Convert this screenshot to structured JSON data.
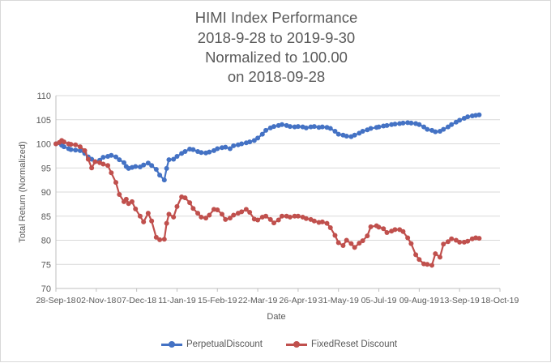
{
  "chart_data": {
    "type": "line",
    "title_lines": [
      "HIMI Index Performance",
      "2018-9-28 to 2019-9-30",
      "Normalized to 100.00",
      "on 2018-09-28"
    ],
    "xlabel": "Date",
    "ylabel": "Total Return (Normalized)",
    "ylim": [
      70,
      110
    ],
    "yticks": [
      70,
      75,
      80,
      85,
      90,
      95,
      100,
      105,
      110
    ],
    "xlim": [
      "2018-09-28",
      "2019-10-18"
    ],
    "xtick_labels": [
      "28-Sep-18",
      "02-Nov-18",
      "07-Dec-18",
      "11-Jan-19",
      "15-Feb-19",
      "22-Mar-19",
      "26-Apr-19",
      "31-May-19",
      "05-Jul-19",
      "09-Aug-19",
      "13-Sep-19",
      "18-Oct-19"
    ],
    "xtick_dates": [
      "2018-09-28",
      "2018-11-02",
      "2018-12-07",
      "2019-01-11",
      "2019-02-15",
      "2019-03-22",
      "2019-04-26",
      "2019-05-31",
      "2019-07-05",
      "2019-08-09",
      "2019-09-13",
      "2019-10-18"
    ],
    "grid": "horizontal",
    "legend_position": "bottom",
    "series": [
      {
        "name": "PerpetualDiscount",
        "color": "#4472c4",
        "points": [
          [
            "2018-09-28",
            100.0
          ],
          [
            "2018-10-01",
            100.2
          ],
          [
            "2018-10-03",
            99.7
          ],
          [
            "2018-10-05",
            99.4
          ],
          [
            "2018-10-09",
            99.0
          ],
          [
            "2018-10-11",
            98.8
          ],
          [
            "2018-10-15",
            98.7
          ],
          [
            "2018-10-19",
            98.6
          ],
          [
            "2018-10-23",
            98.0
          ],
          [
            "2018-10-26",
            97.3
          ],
          [
            "2018-10-29",
            96.8
          ],
          [
            "2018-11-01",
            96.3
          ],
          [
            "2018-11-05",
            96.6
          ],
          [
            "2018-11-08",
            97.2
          ],
          [
            "2018-11-12",
            97.4
          ],
          [
            "2018-11-15",
            97.6
          ],
          [
            "2018-11-19",
            97.3
          ],
          [
            "2018-11-22",
            96.7
          ],
          [
            "2018-11-26",
            96.1
          ],
          [
            "2018-11-28",
            95.3
          ],
          [
            "2018-11-30",
            94.9
          ],
          [
            "2018-12-03",
            95.1
          ],
          [
            "2018-12-06",
            95.3
          ],
          [
            "2018-12-10",
            95.2
          ],
          [
            "2018-12-13",
            95.6
          ],
          [
            "2018-12-17",
            96.0
          ],
          [
            "2018-12-20",
            95.5
          ],
          [
            "2018-12-24",
            94.7
          ],
          [
            "2018-12-27",
            93.5
          ],
          [
            "2018-12-31",
            92.5
          ],
          [
            "2019-01-02",
            94.9
          ],
          [
            "2019-01-04",
            96.7
          ],
          [
            "2019-01-08",
            96.8
          ],
          [
            "2019-01-11",
            97.4
          ],
          [
            "2019-01-15",
            98.0
          ],
          [
            "2019-01-18",
            98.4
          ],
          [
            "2019-01-22",
            98.9
          ],
          [
            "2019-01-25",
            98.8
          ],
          [
            "2019-01-29",
            98.4
          ],
          [
            "2019-02-01",
            98.2
          ],
          [
            "2019-02-05",
            98.1
          ],
          [
            "2019-02-08",
            98.3
          ],
          [
            "2019-02-12",
            98.6
          ],
          [
            "2019-02-15",
            99.0
          ],
          [
            "2019-02-19",
            99.2
          ],
          [
            "2019-02-22",
            99.3
          ],
          [
            "2019-02-26",
            99.0
          ],
          [
            "2019-03-01",
            99.6
          ],
          [
            "2019-03-05",
            99.8
          ],
          [
            "2019-03-08",
            100.0
          ],
          [
            "2019-03-12",
            100.2
          ],
          [
            "2019-03-15",
            100.4
          ],
          [
            "2019-03-19",
            100.7
          ],
          [
            "2019-03-22",
            101.2
          ],
          [
            "2019-03-26",
            102.0
          ],
          [
            "2019-03-29",
            102.8
          ],
          [
            "2019-04-02",
            103.3
          ],
          [
            "2019-04-05",
            103.6
          ],
          [
            "2019-04-09",
            103.8
          ],
          [
            "2019-04-12",
            104.0
          ],
          [
            "2019-04-16",
            103.8
          ],
          [
            "2019-04-19",
            103.6
          ],
          [
            "2019-04-23",
            103.5
          ],
          [
            "2019-04-26",
            103.6
          ],
          [
            "2019-04-30",
            103.5
          ],
          [
            "2019-05-03",
            103.3
          ],
          [
            "2019-05-07",
            103.5
          ],
          [
            "2019-05-10",
            103.6
          ],
          [
            "2019-05-14",
            103.4
          ],
          [
            "2019-05-17",
            103.5
          ],
          [
            "2019-05-21",
            103.4
          ],
          [
            "2019-05-24",
            103.2
          ],
          [
            "2019-05-28",
            102.6
          ],
          [
            "2019-05-31",
            102.0
          ],
          [
            "2019-06-04",
            101.8
          ],
          [
            "2019-06-07",
            101.6
          ],
          [
            "2019-06-11",
            101.5
          ],
          [
            "2019-06-14",
            101.8
          ],
          [
            "2019-06-18",
            102.2
          ],
          [
            "2019-06-21",
            102.6
          ],
          [
            "2019-06-25",
            102.9
          ],
          [
            "2019-06-28",
            103.2
          ],
          [
            "2019-07-03",
            103.4
          ],
          [
            "2019-07-05",
            103.5
          ],
          [
            "2019-07-09",
            103.7
          ],
          [
            "2019-07-12",
            103.8
          ],
          [
            "2019-07-16",
            104.0
          ],
          [
            "2019-07-19",
            104.1
          ],
          [
            "2019-07-23",
            104.2
          ],
          [
            "2019-07-26",
            104.3
          ],
          [
            "2019-07-30",
            104.4
          ],
          [
            "2019-08-02",
            104.3
          ],
          [
            "2019-08-06",
            104.2
          ],
          [
            "2019-08-09",
            104.0
          ],
          [
            "2019-08-13",
            103.5
          ],
          [
            "2019-08-16",
            103.0
          ],
          [
            "2019-08-20",
            102.8
          ],
          [
            "2019-08-23",
            102.5
          ],
          [
            "2019-08-27",
            102.6
          ],
          [
            "2019-08-30",
            103.0
          ],
          [
            "2019-09-03",
            103.5
          ],
          [
            "2019-09-06",
            104.0
          ],
          [
            "2019-09-10",
            104.5
          ],
          [
            "2019-09-13",
            104.9
          ],
          [
            "2019-09-17",
            105.3
          ],
          [
            "2019-09-20",
            105.6
          ],
          [
            "2019-09-24",
            105.8
          ],
          [
            "2019-09-27",
            105.9
          ],
          [
            "2019-09-30",
            106.0
          ]
        ]
      },
      {
        "name": "FixedReset Discount",
        "color": "#c0504d",
        "points": [
          [
            "2018-09-28",
            100.0
          ],
          [
            "2018-10-01",
            100.3
          ],
          [
            "2018-10-03",
            100.7
          ],
          [
            "2018-10-05",
            100.4
          ],
          [
            "2018-10-09",
            100.0
          ],
          [
            "2018-10-11",
            99.9
          ],
          [
            "2018-10-15",
            99.8
          ],
          [
            "2018-10-19",
            99.4
          ],
          [
            "2018-10-23",
            98.6
          ],
          [
            "2018-10-26",
            96.8
          ],
          [
            "2018-10-29",
            95.0
          ],
          [
            "2018-11-01",
            96.3
          ],
          [
            "2018-11-05",
            96.1
          ],
          [
            "2018-11-08",
            95.8
          ],
          [
            "2018-11-12",
            95.5
          ],
          [
            "2018-11-15",
            94.0
          ],
          [
            "2018-11-19",
            92.0
          ],
          [
            "2018-11-22",
            89.5
          ],
          [
            "2018-11-26",
            88.0
          ],
          [
            "2018-11-28",
            88.5
          ],
          [
            "2018-11-30",
            87.6
          ],
          [
            "2018-12-03",
            88.0
          ],
          [
            "2018-12-06",
            86.5
          ],
          [
            "2018-12-10",
            85.0
          ],
          [
            "2018-12-13",
            83.8
          ],
          [
            "2018-12-17",
            85.6
          ],
          [
            "2018-12-20",
            84.0
          ],
          [
            "2018-12-24",
            80.6
          ],
          [
            "2018-12-27",
            80.1
          ],
          [
            "2018-12-31",
            80.2
          ],
          [
            "2019-01-02",
            83.5
          ],
          [
            "2019-01-04",
            85.4
          ],
          [
            "2019-01-08",
            84.8
          ],
          [
            "2019-01-11",
            87.0
          ],
          [
            "2019-01-15",
            89.0
          ],
          [
            "2019-01-18",
            88.8
          ],
          [
            "2019-01-22",
            87.8
          ],
          [
            "2019-01-25",
            86.6
          ],
          [
            "2019-01-29",
            85.6
          ],
          [
            "2019-02-01",
            84.8
          ],
          [
            "2019-02-05",
            84.6
          ],
          [
            "2019-02-08",
            85.2
          ],
          [
            "2019-02-12",
            86.4
          ],
          [
            "2019-02-15",
            86.3
          ],
          [
            "2019-02-19",
            85.4
          ],
          [
            "2019-02-22",
            84.3
          ],
          [
            "2019-02-26",
            84.6
          ],
          [
            "2019-03-01",
            85.2
          ],
          [
            "2019-03-05",
            85.6
          ],
          [
            "2019-03-08",
            85.9
          ],
          [
            "2019-03-12",
            86.4
          ],
          [
            "2019-03-15",
            85.8
          ],
          [
            "2019-03-19",
            84.4
          ],
          [
            "2019-03-22",
            84.2
          ],
          [
            "2019-03-26",
            84.8
          ],
          [
            "2019-03-29",
            85.0
          ],
          [
            "2019-04-02",
            84.3
          ],
          [
            "2019-04-05",
            83.6
          ],
          [
            "2019-04-09",
            84.2
          ],
          [
            "2019-04-12",
            85.0
          ],
          [
            "2019-04-16",
            85.0
          ],
          [
            "2019-04-19",
            84.8
          ],
          [
            "2019-04-23",
            85.0
          ],
          [
            "2019-04-26",
            85.0
          ],
          [
            "2019-04-30",
            84.8
          ],
          [
            "2019-05-03",
            84.5
          ],
          [
            "2019-05-07",
            84.3
          ],
          [
            "2019-05-10",
            84.0
          ],
          [
            "2019-05-14",
            83.7
          ],
          [
            "2019-05-17",
            83.8
          ],
          [
            "2019-05-21",
            83.5
          ],
          [
            "2019-05-24",
            82.6
          ],
          [
            "2019-05-28",
            81.0
          ],
          [
            "2019-05-31",
            79.5
          ],
          [
            "2019-06-04",
            78.9
          ],
          [
            "2019-06-07",
            80.0
          ],
          [
            "2019-06-11",
            79.3
          ],
          [
            "2019-06-14",
            78.5
          ],
          [
            "2019-06-18",
            79.4
          ],
          [
            "2019-06-21",
            79.9
          ],
          [
            "2019-06-25",
            80.9
          ],
          [
            "2019-06-28",
            82.8
          ],
          [
            "2019-07-03",
            83.0
          ],
          [
            "2019-07-05",
            82.7
          ],
          [
            "2019-07-09",
            82.4
          ],
          [
            "2019-07-12",
            81.6
          ],
          [
            "2019-07-16",
            81.9
          ],
          [
            "2019-07-19",
            82.2
          ],
          [
            "2019-07-23",
            82.2
          ],
          [
            "2019-07-26",
            81.8
          ],
          [
            "2019-07-30",
            80.5
          ],
          [
            "2019-08-02",
            79.3
          ],
          [
            "2019-08-06",
            77.0
          ],
          [
            "2019-08-09",
            76.0
          ],
          [
            "2019-08-13",
            75.1
          ],
          [
            "2019-08-16",
            75.0
          ],
          [
            "2019-08-20",
            74.8
          ],
          [
            "2019-08-23",
            77.2
          ],
          [
            "2019-08-27",
            76.5
          ],
          [
            "2019-08-30",
            79.2
          ],
          [
            "2019-09-03",
            79.7
          ],
          [
            "2019-09-06",
            80.3
          ],
          [
            "2019-09-10",
            80.0
          ],
          [
            "2019-09-13",
            79.6
          ],
          [
            "2019-09-17",
            79.6
          ],
          [
            "2019-09-20",
            79.8
          ],
          [
            "2019-09-24",
            80.3
          ],
          [
            "2019-09-27",
            80.5
          ],
          [
            "2019-09-30",
            80.4
          ]
        ]
      }
    ]
  }
}
